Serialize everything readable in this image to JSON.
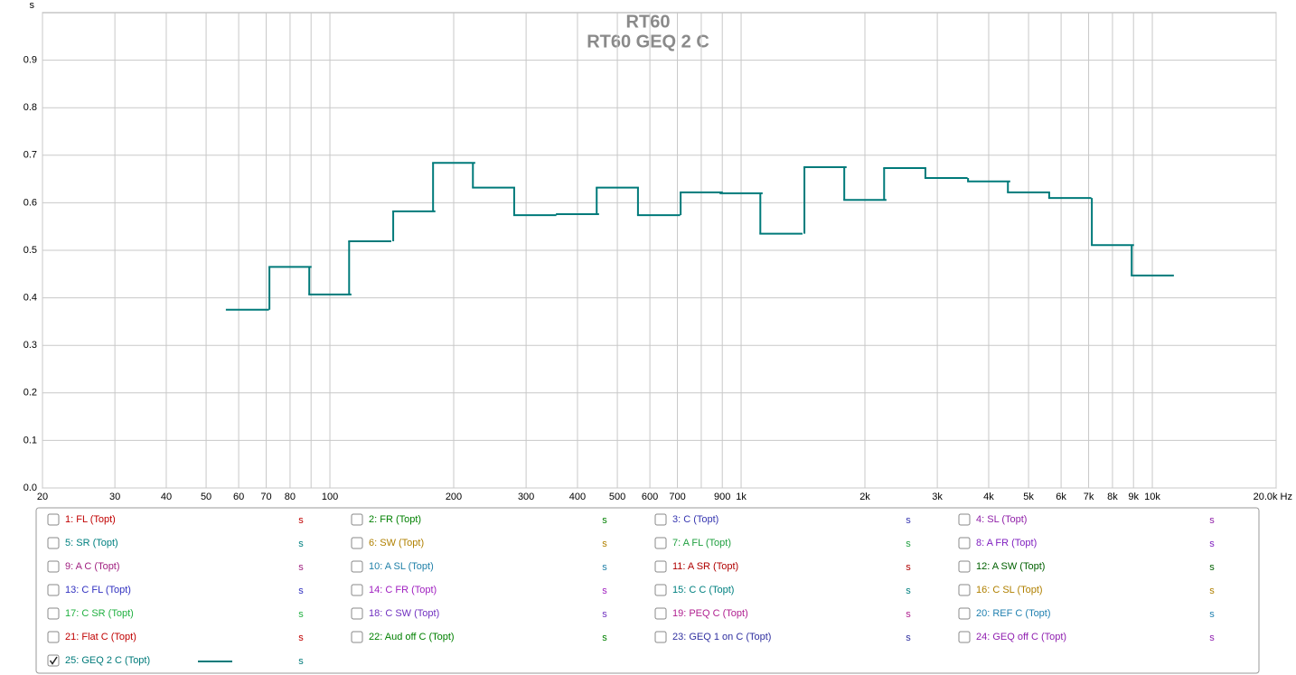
{
  "chart_data": {
    "type": "step",
    "title": "RT60",
    "subtitle": "RT60 GEQ 2 C",
    "y_label": "s",
    "x": [
      63,
      80,
      100,
      125,
      160,
      200,
      250,
      315,
      400,
      500,
      630,
      800,
      1000,
      1250,
      1600,
      2000,
      2500,
      3150,
      4000,
      5000,
      6300,
      8000,
      10000
    ],
    "series": [
      {
        "name": "25: GEQ 2 C (Topt)",
        "color": "#007a7a",
        "checked": true,
        "values": [
          0.375,
          0.465,
          0.407,
          0.519,
          0.582,
          0.684,
          0.632,
          0.574,
          0.576,
          0.632,
          0.574,
          0.622,
          0.62,
          0.535,
          0.675,
          0.606,
          0.673,
          0.652,
          0.645,
          0.622,
          0.61,
          0.511,
          0.447
        ]
      }
    ],
    "xlim": [
      20,
      20000
    ],
    "xlog": true,
    "xticks": [
      20,
      30,
      40,
      50,
      60,
      70,
      80,
      {
        "value": 90,
        "label": null
      },
      100,
      200,
      300,
      400,
      500,
      600,
      700,
      {
        "value": 800,
        "label": null
      },
      900,
      {
        "value": 1000,
        "label": "1k"
      },
      {
        "value": 2000,
        "label": "2k"
      },
      {
        "value": 3000,
        "label": "3k"
      },
      {
        "value": 4000,
        "label": "4k"
      },
      {
        "value": 5000,
        "label": "5k"
      },
      {
        "value": 6000,
        "label": "6k"
      },
      {
        "value": 7000,
        "label": "7k"
      },
      {
        "value": 8000,
        "label": "8k"
      },
      {
        "value": 9000,
        "label": "9k"
      },
      {
        "value": 10000,
        "label": "10k"
      },
      {
        "value": 20000,
        "label": "20.0k Hz"
      }
    ],
    "ylim": [
      0,
      1
    ],
    "yticks": [
      {
        "value": 0,
        "label": "0.0"
      },
      0.1,
      0.2,
      0.3,
      0.4,
      0.5,
      0.6,
      0.7,
      0.8,
      0.9
    ],
    "grid": true
  },
  "legend": {
    "unit": "s",
    "items": [
      {
        "name": "1: FL (Topt)",
        "color": "#c00000",
        "checked": false
      },
      {
        "name": "2: FR (Topt)",
        "color": "#008000",
        "checked": false
      },
      {
        "name": "3: C (Topt)",
        "color": "#3535b0",
        "checked": false
      },
      {
        "name": "4: SL (Topt)",
        "color": "#9020a8",
        "checked": false
      },
      {
        "name": "5: SR (Topt)",
        "color": "#008080",
        "checked": false
      },
      {
        "name": "6: SW (Topt)",
        "color": "#b08000",
        "checked": false
      },
      {
        "name": "7: A FL (Topt)",
        "color": "#20a040",
        "checked": false
      },
      {
        "name": "8: A FR (Topt)",
        "color": "#8020c0",
        "checked": false
      },
      {
        "name": "9: A C (Topt)",
        "color": "#a02080",
        "checked": false
      },
      {
        "name": "10: A SL (Topt)",
        "color": "#2080a8",
        "checked": false
      },
      {
        "name": "11: A SR (Topt)",
        "color": "#b00000",
        "checked": false
      },
      {
        "name": "12: A SW (Topt)",
        "color": "#006000",
        "checked": false
      },
      {
        "name": "13: C FL (Topt)",
        "color": "#3030c0",
        "checked": false
      },
      {
        "name": "14: C FR (Topt)",
        "color": "#a020c0",
        "checked": false
      },
      {
        "name": "15: C C (Topt)",
        "color": "#008080",
        "checked": false
      },
      {
        "name": "16: C SL (Topt)",
        "color": "#b08000",
        "checked": false
      },
      {
        "name": "17: C SR (Topt)",
        "color": "#20b040",
        "checked": false
      },
      {
        "name": "18: C SW (Topt)",
        "color": "#7030c0",
        "checked": false
      },
      {
        "name": "19: PEQ C (Topt)",
        "color": "#b02090",
        "checked": false
      },
      {
        "name": "20: REF C (Topt)",
        "color": "#2080b0",
        "checked": false
      },
      {
        "name": "21: Flat C (Topt)",
        "color": "#c00000",
        "checked": false
      },
      {
        "name": "22: Aud off C (Topt)",
        "color": "#008000",
        "checked": false
      },
      {
        "name": "23: GEQ 1 on C (Topt)",
        "color": "#3030a0",
        "checked": false
      },
      {
        "name": "24: GEQ off C (Topt)",
        "color": "#9020b0",
        "checked": false
      }
    ]
  }
}
